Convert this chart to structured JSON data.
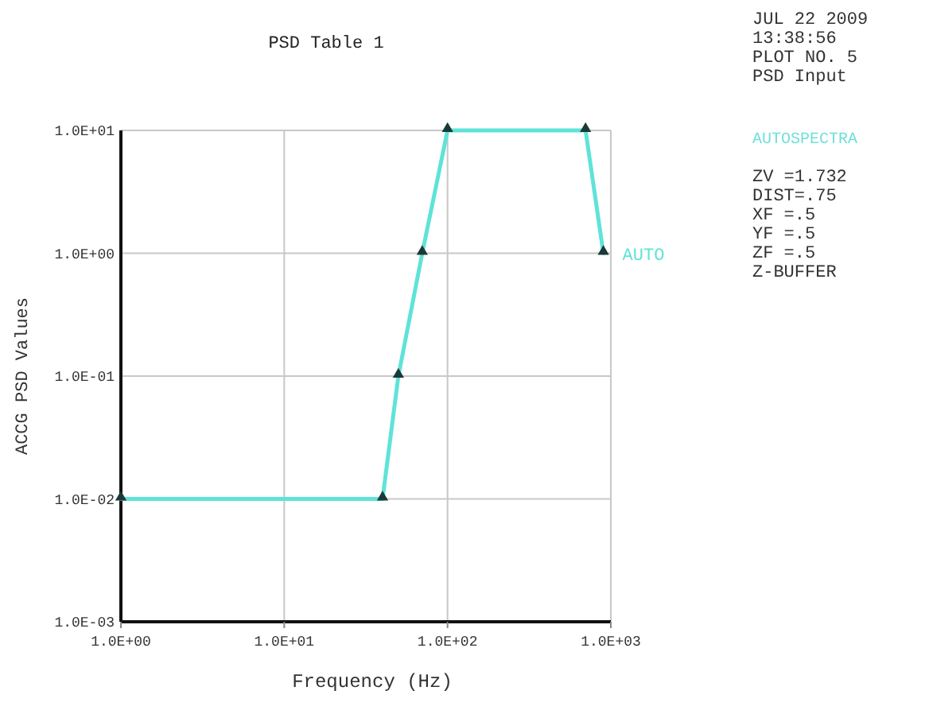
{
  "chart_data": {
    "type": "line",
    "title": "PSD Table  1",
    "xlabel": "Frequency (Hz)",
    "ylabel": "ACCG PSD Values",
    "legend_title": "AUTOSPECTRA",
    "log": "xy",
    "grid": true,
    "marker": "triangle",
    "line_style": "solid",
    "xlim": [
      1,
      1000
    ],
    "xticks": [
      {
        "value": 1,
        "label": "1.0E+00"
      },
      {
        "value": 10,
        "label": "1.0E+01"
      },
      {
        "value": 100,
        "label": "1.0E+02"
      },
      {
        "value": 1000,
        "label": "1.0E+03"
      }
    ],
    "ylim": [
      0.001,
      10
    ],
    "yticks": [
      {
        "value": 0.001,
        "label": "1.0E-03"
      },
      {
        "value": 0.01,
        "label": "1.0E-02"
      },
      {
        "value": 0.1,
        "label": "1.0E-01"
      },
      {
        "value": 1,
        "label": "1.0E+00"
      },
      {
        "value": 10,
        "label": "1.0E+01"
      }
    ],
    "series": [
      {
        "name": "AUTO",
        "color": "#5fe3d9",
        "x": [
          1,
          40,
          50,
          70,
          100,
          700,
          900
        ],
        "values": [
          0.01,
          0.01,
          0.1,
          1,
          10,
          10,
          1
        ]
      }
    ],
    "annotations": [
      "JUL 22 2009",
      "13:38:56",
      "PLOT NO.    5",
      "PSD Input",
      "ZV  =1.732",
      "DIST=.75",
      "XF  =.5",
      "YF  =.5",
      "ZF  =.5",
      "Z-BUFFER"
    ]
  }
}
